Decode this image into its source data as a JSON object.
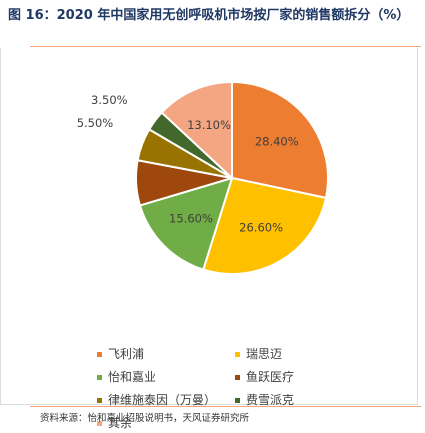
{
  "figure": {
    "title": "图 16：2020 年中国家用无创呼吸机市场按厂家的销售额拆分（%）",
    "source": "资料来源：怡和嘉业招股说明书，天风证券研究所"
  },
  "chart_data": {
    "type": "pie",
    "unit": "%",
    "title": "",
    "slices": [
      {
        "name": "飞利浦",
        "value": 28.4,
        "label": "28.40%",
        "color": "#ed7d31"
      },
      {
        "name": "瑞思迈",
        "value": 26.6,
        "label": "26.60%",
        "color": "#ffc000"
      },
      {
        "name": "怡和嘉业",
        "value": 15.6,
        "label": "15.60%",
        "color": "#70ad47"
      },
      {
        "name": "鱼跃医疗",
        "value": 7.6,
        "label": "",
        "color": "#9e480e"
      },
      {
        "name": "律维施泰因（万曼）",
        "value": 5.5,
        "label": "5.50%",
        "color": "#997300"
      },
      {
        "name": "费雪派克",
        "value": 3.5,
        "label": "3.50%",
        "color": "#43682b"
      },
      {
        "name": "其余",
        "value": 13.1,
        "label": "13.10%",
        "color": "#f4a582"
      }
    ],
    "legend_position": "bottom"
  }
}
